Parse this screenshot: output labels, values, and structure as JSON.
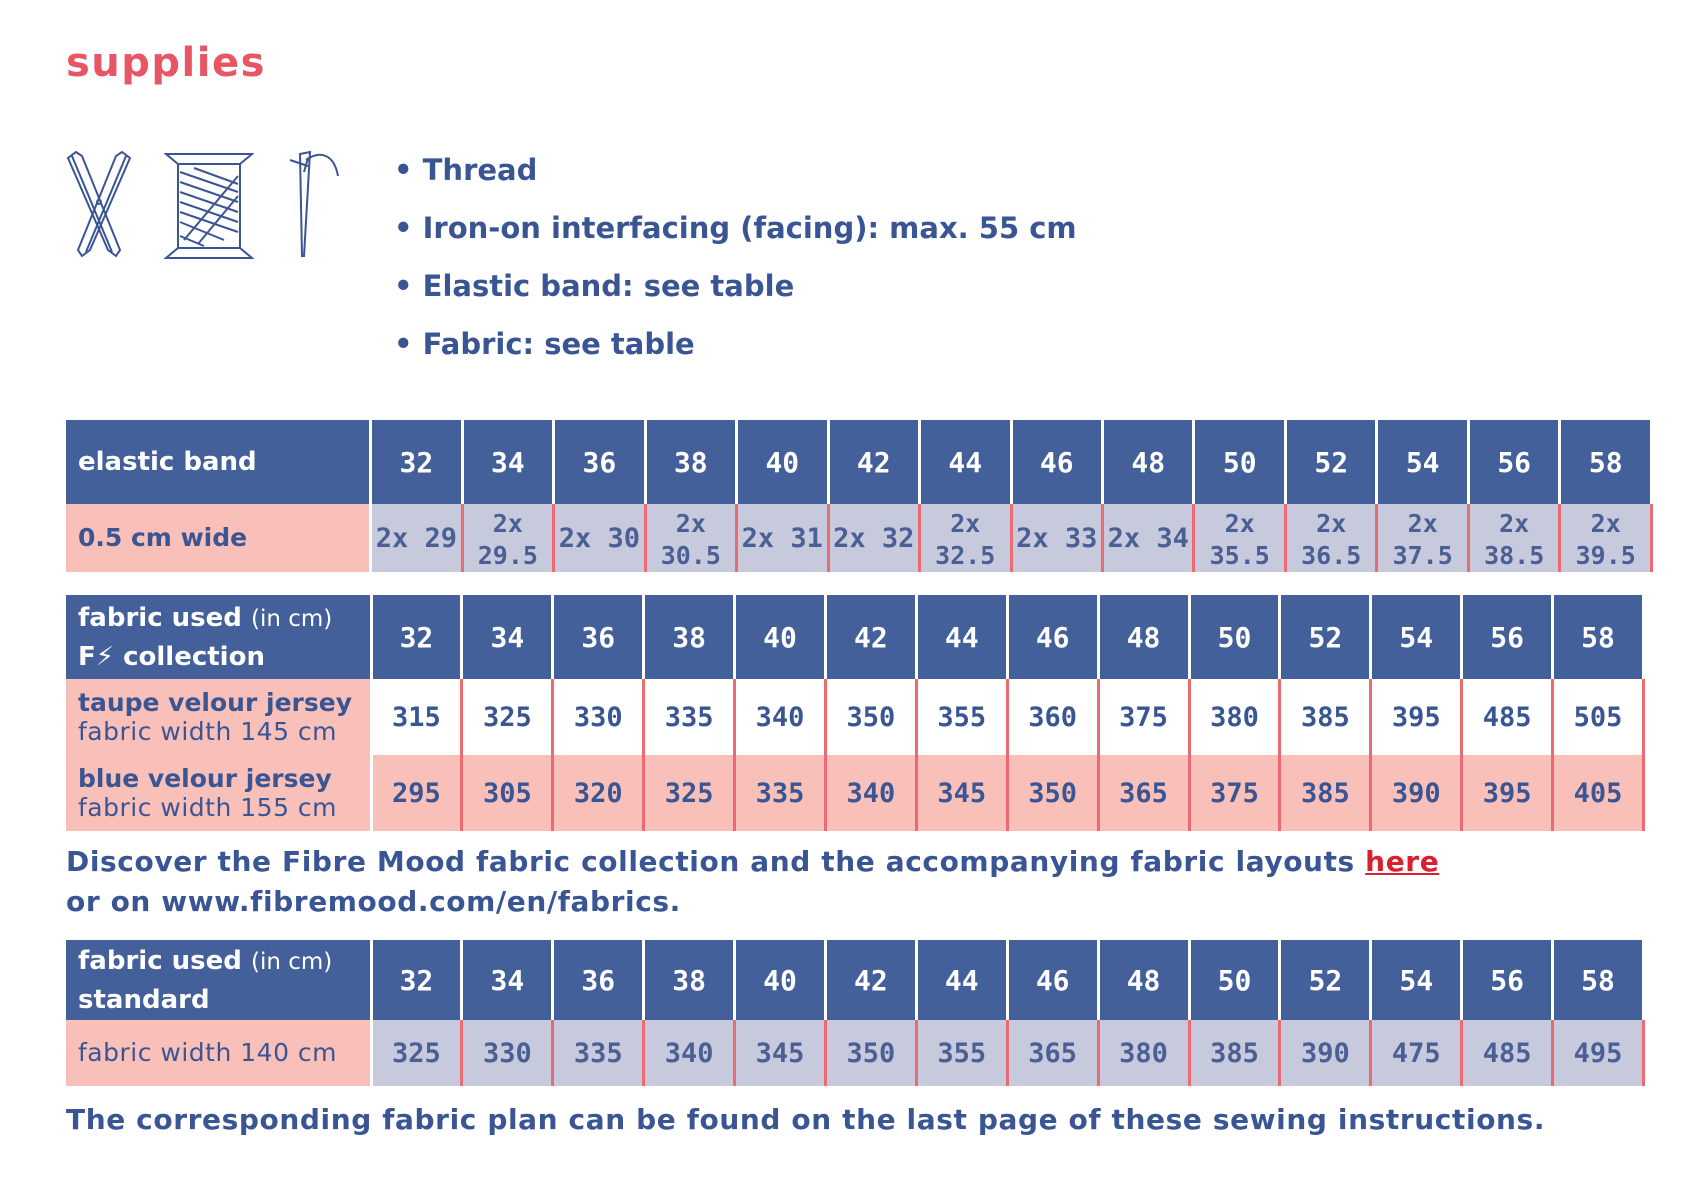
{
  "title": "supplies",
  "icons": [
    "scissors-icon",
    "thread-spool-icon",
    "needle-icon"
  ],
  "supplies": [
    "Thread",
    "Iron-on interfacing (facing): max. 55 cm",
    "Elastic band: see table",
    "Fabric: see table"
  ],
  "colors": {
    "header": "#44609a",
    "accent_red": "#e85564",
    "pink": "#f8c0b9",
    "lavender": "#c7c9dd",
    "text_blue": "#3a5594"
  },
  "sizes": [
    "32",
    "34",
    "36",
    "38",
    "40",
    "42",
    "44",
    "46",
    "48",
    "50",
    "52",
    "54",
    "56",
    "58"
  ],
  "elastic_table": {
    "header": "elastic band",
    "row_label": "0.5 cm wide",
    "values": [
      "2x 29",
      "2x 29.5",
      "2x 30",
      "2x 30.5",
      "2x 31",
      "2x 32",
      "2x 32.5",
      "2x 33",
      "2x 34",
      "2x 35.5",
      "2x 36.5",
      "2x 37.5",
      "2x 38.5",
      "2x 39.5"
    ]
  },
  "fm_table": {
    "header_line1": "fabric used",
    "header_unit": "(in cm)",
    "header_line2_logo": "F",
    "header_line2": "collection",
    "rows": [
      {
        "label": "taupe velour jersey",
        "sub": "fabric width 145 cm",
        "values": [
          "315",
          "325",
          "330",
          "335",
          "340",
          "350",
          "355",
          "360",
          "375",
          "380",
          "385",
          "395",
          "485",
          "505"
        ]
      },
      {
        "label": "blue velour jersey",
        "sub": "fabric width 155 cm",
        "values": [
          "295",
          "305",
          "320",
          "325",
          "335",
          "340",
          "345",
          "350",
          "365",
          "375",
          "385",
          "390",
          "395",
          "405"
        ]
      }
    ]
  },
  "note1": {
    "line1": "Discover the Fibre Mood fabric collection and the accompanying fabric layouts ",
    "link": "here",
    "line2": "or on www.fibremood.com/en/fabrics."
  },
  "std_table": {
    "header_line1": "fabric used",
    "header_unit": "(in cm)",
    "header_line2": "standard",
    "row_label": "fabric width 140 cm",
    "values": [
      "325",
      "330",
      "335",
      "340",
      "345",
      "350",
      "355",
      "365",
      "380",
      "385",
      "390",
      "475",
      "485",
      "495"
    ]
  },
  "note2": "The corresponding fabric plan can be found on the last page of these sewing instructions."
}
